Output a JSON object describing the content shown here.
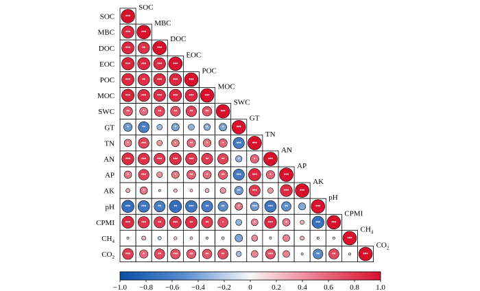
{
  "chart_data": {
    "type": "heatmap",
    "subtype": "correlation-lower-triangle",
    "variables": [
      "SOC",
      "MBC",
      "DOC",
      "EOC",
      "POC",
      "MOC",
      "SWC",
      "GT",
      "TN",
      "AN",
      "AP",
      "AK",
      "pH",
      "CPMI",
      "CH4",
      "CO2"
    ],
    "variable_labels": {
      "SOC": "SOC",
      "MBC": "MBC",
      "DOC": "DOC",
      "EOC": "EOC",
      "POC": "POC",
      "MOC": "MOC",
      "SWC": "SWC",
      "GT": "GT",
      "TN": "TN",
      "AN": "AN",
      "AP": "AP",
      "AK": "AK",
      "pH": "pH",
      "CPMI": "CPMI",
      "CH4": {
        "base": "CH",
        "sub": "4"
      },
      "CO2": {
        "base": "CO",
        "sub": "2"
      }
    },
    "matrix": [
      [
        1.0
      ],
      [
        0.9,
        1.0
      ],
      [
        0.9,
        0.85,
        1.0
      ],
      [
        0.92,
        0.9,
        0.88,
        1.0
      ],
      [
        0.9,
        0.86,
        0.88,
        0.9,
        1.0
      ],
      [
        0.92,
        0.88,
        0.87,
        0.9,
        0.9,
        1.0
      ],
      [
        0.68,
        0.6,
        0.75,
        0.72,
        0.78,
        0.7,
        1.0
      ],
      [
        -0.62,
        -0.8,
        -0.4,
        -0.55,
        -0.45,
        -0.48,
        -0.55,
        1.0
      ],
      [
        0.55,
        0.78,
        0.4,
        0.55,
        0.62,
        0.58,
        0.62,
        -0.82,
        1.0
      ],
      [
        0.88,
        0.85,
        0.82,
        0.86,
        0.84,
        0.82,
        0.78,
        -0.48,
        0.62,
        1.0
      ],
      [
        0.55,
        0.78,
        0.42,
        0.55,
        0.65,
        0.6,
        0.68,
        -0.82,
        0.9,
        0.62,
        1.0
      ],
      [
        0.3,
        0.55,
        0.15,
        0.25,
        0.2,
        0.3,
        0.42,
        -0.62,
        0.82,
        0.4,
        0.88,
        1.0
      ],
      [
        -0.9,
        -0.85,
        -0.8,
        -0.9,
        -0.85,
        -0.82,
        -0.72,
        0.55,
        -0.62,
        -0.85,
        -0.7,
        -0.52,
        1.0
      ],
      [
        0.88,
        0.84,
        0.82,
        0.86,
        0.86,
        0.82,
        0.75,
        -0.45,
        0.5,
        0.88,
        0.55,
        0.3,
        -0.88,
        1.0
      ],
      [
        0.1,
        0.3,
        -0.25,
        0.22,
        0.2,
        0.15,
        0.2,
        -0.55,
        0.45,
        0.1,
        0.5,
        0.3,
        -0.15,
        0.1,
        1.0
      ],
      [
        0.8,
        0.62,
        0.75,
        0.72,
        0.68,
        0.7,
        0.75,
        -0.38,
        0.5,
        0.72,
        0.5,
        0.12,
        -0.72,
        0.75,
        -0.18,
        1.0
      ]
    ],
    "significance": [
      [
        "***"
      ],
      [
        "***",
        "***"
      ],
      [
        "***",
        "**",
        "***"
      ],
      [
        "***",
        "***",
        "***",
        "***"
      ],
      [
        "***",
        "**",
        "***",
        "***",
        "***"
      ],
      [
        "***",
        "***",
        "***",
        "***",
        "***",
        "***"
      ],
      [
        "**",
        "*",
        "**",
        "**",
        "**",
        "**",
        "***"
      ],
      [
        "*",
        "**",
        "",
        "*",
        "",
        "*",
        "*",
        "***"
      ],
      [
        "*",
        "***",
        "",
        "*",
        "**",
        "*",
        "*",
        "***",
        "***"
      ],
      [
        "***",
        "***",
        "***",
        "***",
        "***",
        "**",
        "**",
        "*",
        "*",
        "***"
      ],
      [
        "*",
        "***",
        "",
        "*",
        "**",
        "*",
        "**",
        "***",
        "***",
        "*",
        "***"
      ],
      [
        "",
        "*",
        "",
        "",
        "",
        "",
        "",
        "**",
        "***",
        "",
        "***",
        "***"
      ],
      [
        "***",
        "***",
        "**",
        "**",
        "***",
        "**",
        "**",
        "*",
        "***",
        "***",
        "**",
        "",
        "***"
      ],
      [
        "***",
        "***",
        "**",
        "***",
        "**",
        "**",
        "*",
        "",
        "*",
        "***",
        "*",
        "",
        "***",
        "***"
      ],
      [
        "",
        "",
        "",
        "",
        "",
        "",
        "",
        "",
        "",
        "",
        "",
        "",
        "",
        "",
        "***"
      ],
      [
        "***",
        "*",
        "**",
        "***",
        "**",
        "**",
        "**",
        "",
        "",
        "***",
        "",
        "",
        "**",
        "**",
        "",
        "***"
      ]
    ],
    "colorbar": {
      "range": [
        -1.0,
        1.0
      ],
      "ticks": [
        "−1.0",
        "−0.8",
        "−0.6",
        "−0.4",
        "−0.2",
        "0",
        "0.2",
        "0.4",
        "0.6",
        "0.8",
        "1.0"
      ],
      "colors": {
        "negative": "#1f5fb5",
        "zero": "#f7f7f7",
        "positive": "#d8102c"
      }
    }
  }
}
